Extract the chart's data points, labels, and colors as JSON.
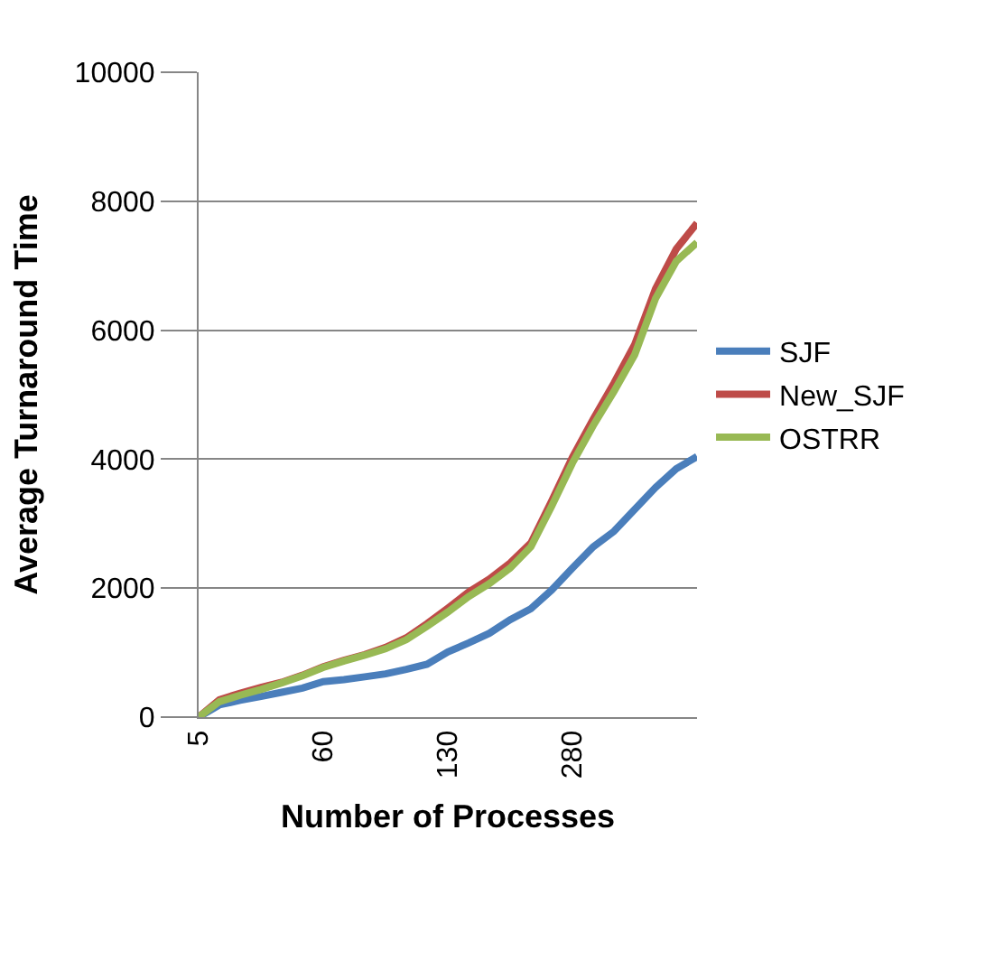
{
  "chart_data": {
    "type": "line",
    "xlabel": "Number of Processes",
    "ylabel": "Average Turnaround Time",
    "categories": [
      "5",
      null,
      null,
      null,
      null,
      null,
      "60",
      null,
      null,
      null,
      null,
      null,
      "130",
      null,
      null,
      null,
      null,
      null,
      "280",
      null,
      null,
      null,
      null,
      null,
      null
    ],
    "series": [
      {
        "name": "SJF",
        "color": "#4a7ebb",
        "values": [
          0,
          190,
          260,
          320,
          385,
          450,
          550,
          580,
          625,
          670,
          740,
          820,
          1010,
          1150,
          1300,
          1510,
          1680,
          1970,
          2310,
          2640,
          2880,
          3220,
          3560,
          3850,
          4040
        ]
      },
      {
        "name": "New_SJF",
        "color": "#be4b48",
        "values": [
          0,
          270,
          370,
          460,
          540,
          650,
          780,
          880,
          970,
          1080,
          1230,
          1450,
          1690,
          1940,
          2140,
          2390,
          2700,
          3350,
          4030,
          4620,
          5180,
          5780,
          6640,
          7260,
          7660
        ]
      },
      {
        "name": "OSTRR",
        "color": "#98b954",
        "values": [
          0,
          240,
          340,
          430,
          530,
          640,
          770,
          870,
          960,
          1060,
          1200,
          1410,
          1630,
          1870,
          2070,
          2310,
          2640,
          3270,
          3940,
          4520,
          5050,
          5620,
          6490,
          7070,
          7360
        ]
      }
    ],
    "ylim": [
      0,
      10000
    ],
    "yticks": [
      0,
      2000,
      4000,
      6000,
      8000,
      10000
    ],
    "grid": "y",
    "legend": "right",
    "marker": "none",
    "line_style": "solid"
  }
}
